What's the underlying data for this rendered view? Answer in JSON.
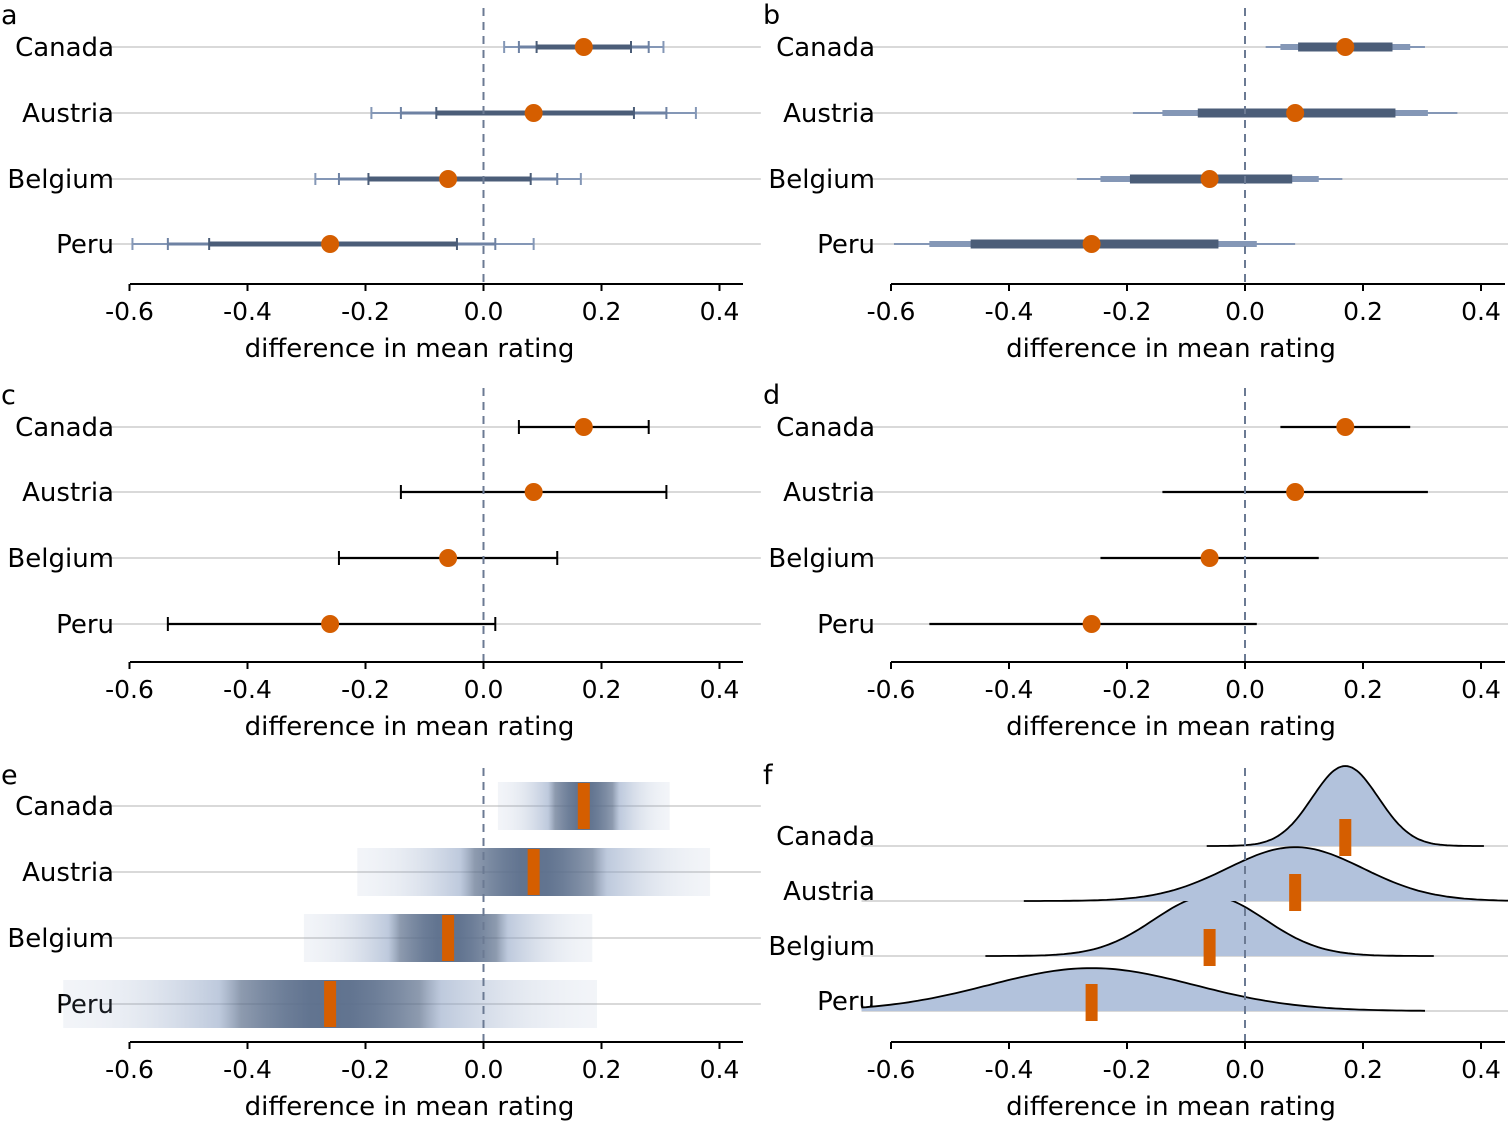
{
  "colors": {
    "point": "#d55e00",
    "interval_dark": "#4b5d78",
    "interval_light": "#8497b6",
    "density_fill": "#b2c2dc",
    "gridline": "#d9d9d9",
    "zero_line": "#6b7a93",
    "axis": "#000000"
  },
  "chart_data": [
    {
      "panel": "a",
      "type": "interval",
      "style": "multiple-intervals-with-caps",
      "xlabel": "difference in mean rating",
      "xlim": [
        -0.65,
        0.47
      ],
      "xticks": [
        -0.6,
        -0.4,
        -0.2,
        0.0,
        0.2,
        0.4
      ],
      "xtick_labels": [
        "-0.6",
        "-0.4",
        "-0.2",
        "0.0",
        "0.2",
        "0.4"
      ],
      "categories": [
        "Canada",
        "Austria",
        "Belgium",
        "Peru"
      ],
      "estimates": [
        0.17,
        0.085,
        -0.06,
        -0.26
      ],
      "intervals": {
        "99": [
          [
            0.035,
            0.305
          ],
          [
            -0.19,
            0.36
          ],
          [
            -0.285,
            0.165
          ],
          [
            -0.595,
            0.085
          ]
        ],
        "95": [
          [
            0.06,
            0.28
          ],
          [
            -0.14,
            0.31
          ],
          [
            -0.245,
            0.125
          ],
          [
            -0.535,
            0.02
          ]
        ],
        "80": [
          [
            0.09,
            0.25
          ],
          [
            -0.08,
            0.255
          ],
          [
            -0.195,
            0.08
          ],
          [
            -0.465,
            -0.045
          ]
        ]
      },
      "zero_line": 0
    },
    {
      "panel": "b",
      "type": "interval",
      "style": "multiple-intervals-graded-width",
      "xlabel": "difference in mean rating",
      "xlim": [
        -0.65,
        0.47
      ],
      "xticks": [
        -0.6,
        -0.4,
        -0.2,
        0.0,
        0.2,
        0.4
      ],
      "xtick_labels": [
        "-0.6",
        "-0.4",
        "-0.2",
        "0.0",
        "0.2",
        "0.4"
      ],
      "categories": [
        "Canada",
        "Austria",
        "Belgium",
        "Peru"
      ],
      "estimates": [
        0.17,
        0.085,
        -0.06,
        -0.26
      ],
      "intervals": {
        "99": [
          [
            0.035,
            0.305
          ],
          [
            -0.19,
            0.36
          ],
          [
            -0.285,
            0.165
          ],
          [
            -0.595,
            0.085
          ]
        ],
        "95": [
          [
            0.06,
            0.28
          ],
          [
            -0.14,
            0.31
          ],
          [
            -0.245,
            0.125
          ],
          [
            -0.535,
            0.02
          ]
        ],
        "80": [
          [
            0.09,
            0.25
          ],
          [
            -0.08,
            0.255
          ],
          [
            -0.195,
            0.08
          ],
          [
            -0.465,
            -0.045
          ]
        ]
      },
      "zero_line": 0
    },
    {
      "panel": "c",
      "type": "interval",
      "style": "single-interval-with-caps",
      "xlabel": "difference in mean rating",
      "xlim": [
        -0.65,
        0.47
      ],
      "xticks": [
        -0.6,
        -0.4,
        -0.2,
        0.0,
        0.2,
        0.4
      ],
      "xtick_labels": [
        "-0.6",
        "-0.4",
        "-0.2",
        "0.0",
        "0.2",
        "0.4"
      ],
      "categories": [
        "Canada",
        "Austria",
        "Belgium",
        "Peru"
      ],
      "estimates": [
        0.17,
        0.085,
        -0.06,
        -0.26
      ],
      "intervals": {
        "95": [
          [
            0.06,
            0.28
          ],
          [
            -0.14,
            0.31
          ],
          [
            -0.245,
            0.125
          ],
          [
            -0.535,
            0.02
          ]
        ]
      },
      "zero_line": 0
    },
    {
      "panel": "d",
      "type": "interval",
      "style": "single-interval-no-caps",
      "xlabel": "difference in mean rating",
      "xlim": [
        -0.65,
        0.47
      ],
      "xticks": [
        -0.6,
        -0.4,
        -0.2,
        0.0,
        0.2,
        0.4
      ],
      "xtick_labels": [
        "-0.6",
        "-0.4",
        "-0.2",
        "0.0",
        "0.2",
        "0.4"
      ],
      "categories": [
        "Canada",
        "Austria",
        "Belgium",
        "Peru"
      ],
      "estimates": [
        0.17,
        0.085,
        -0.06,
        -0.26
      ],
      "intervals": {
        "95": [
          [
            0.06,
            0.28
          ],
          [
            -0.14,
            0.31
          ],
          [
            -0.245,
            0.125
          ],
          [
            -0.535,
            0.02
          ]
        ]
      },
      "zero_line": 0
    },
    {
      "panel": "e",
      "type": "gradient-interval",
      "xlabel": "difference in mean rating",
      "xlim": [
        -0.65,
        0.47
      ],
      "xticks": [
        -0.6,
        -0.4,
        -0.2,
        0.0,
        0.2,
        0.4
      ],
      "xtick_labels": [
        "-0.6",
        "-0.4",
        "-0.2",
        "0.0",
        "0.2",
        "0.4"
      ],
      "categories": [
        "Canada",
        "Austria",
        "Belgium",
        "Peru"
      ],
      "estimates": [
        0.17,
        0.085,
        -0.06,
        -0.26
      ],
      "std_errors": [
        0.056,
        0.115,
        0.094,
        0.174
      ],
      "zero_line": 0
    },
    {
      "panel": "f",
      "type": "density-ridgeline",
      "xlabel": "difference in mean rating",
      "xlim": [
        -0.65,
        0.47
      ],
      "xticks": [
        -0.6,
        -0.4,
        -0.2,
        0.0,
        0.2,
        0.4
      ],
      "xtick_labels": [
        "-0.6",
        "-0.4",
        "-0.2",
        "0.0",
        "0.2",
        "0.4"
      ],
      "categories": [
        "Canada",
        "Austria",
        "Belgium",
        "Peru"
      ],
      "estimates": [
        0.17,
        0.085,
        -0.06,
        -0.26
      ],
      "std_errors": [
        0.056,
        0.115,
        0.094,
        0.174
      ],
      "density_range": [
        [
          -0.065,
          0.405
        ],
        [
          -0.375,
          0.47
        ],
        [
          -0.44,
          0.32
        ],
        [
          -0.65,
          0.305
        ]
      ],
      "zero_line": 0
    }
  ]
}
